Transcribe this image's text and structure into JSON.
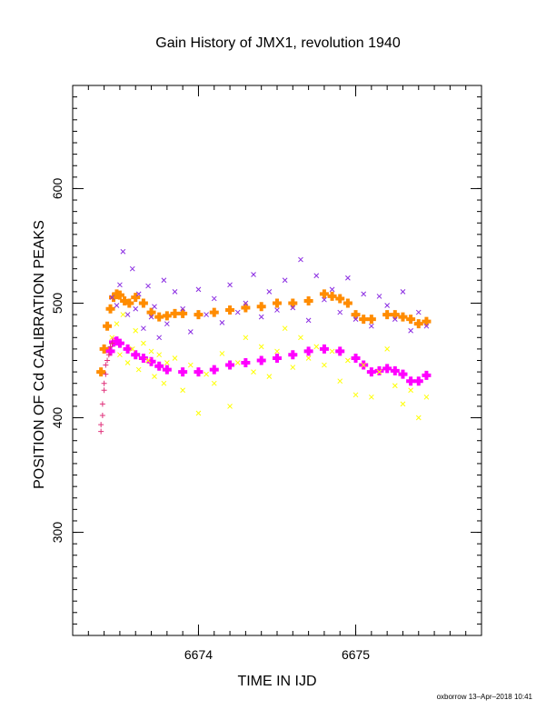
{
  "chart_data": {
    "type": "scatter",
    "title": "Gain History of JMX1, revolution 1940",
    "xlabel": "TIME IN IJD",
    "ylabel": "POSITION OF Cd CALIBRATION PEAKS",
    "xlim": [
      6673.2,
      6675.8
    ],
    "ylim": [
      210,
      690
    ],
    "x_ticks": [
      6674,
      6675
    ],
    "y_ticks": [
      300,
      400,
      500,
      600
    ],
    "grid": false,
    "footer": "oxborrow 13–Apr–2018 10:41",
    "colors": {
      "purple": "#8a2be2",
      "orange": "#ff8c00",
      "yellow": "#ffff00",
      "magenta": "#ff00ff",
      "pink": "#e0307a"
    },
    "series": [
      {
        "color": "#ff8c00",
        "marker": "plus-thick",
        "x": [
          6673.38,
          6673.4,
          6673.42,
          6673.44,
          6673.46,
          6673.48,
          6673.5,
          6673.53,
          6673.56,
          6673.6,
          6673.65,
          6673.7,
          6673.75,
          6673.8,
          6673.85,
          6673.9,
          6674.0,
          6674.1,
          6674.2,
          6674.3,
          6674.4,
          6674.5,
          6674.6,
          6674.7,
          6674.8,
          6674.85,
          6674.9,
          6674.95,
          6675.0,
          6675.05,
          6675.1,
          6675.2,
          6675.25,
          6675.3,
          6675.35,
          6675.4,
          6675.45
        ],
        "y": [
          440,
          460,
          480,
          495,
          505,
          508,
          507,
          502,
          500,
          505,
          500,
          492,
          488,
          489,
          491,
          491,
          490,
          492,
          494,
          496,
          497,
          500,
          500,
          502,
          508,
          506,
          504,
          500,
          490,
          486,
          486,
          490,
          490,
          488,
          486,
          482,
          484
        ]
      },
      {
        "color": "#ff00ff",
        "marker": "plus-thick",
        "x": [
          6673.44,
          6673.46,
          6673.48,
          6673.5,
          6673.55,
          6673.6,
          6673.65,
          6673.7,
          6673.75,
          6673.8,
          6673.9,
          6674.0,
          6674.1,
          6674.2,
          6674.3,
          6674.4,
          6674.5,
          6674.6,
          6674.7,
          6674.8,
          6674.9,
          6675.0,
          6675.05,
          6675.1,
          6675.15,
          6675.2,
          6675.25,
          6675.3,
          6675.35,
          6675.4,
          6675.45
        ],
        "y": [
          458,
          466,
          467,
          465,
          460,
          455,
          452,
          449,
          445,
          442,
          440,
          440,
          442,
          446,
          448,
          450,
          452,
          455,
          458,
          460,
          458,
          452,
          446,
          440,
          441,
          443,
          441,
          438,
          432,
          432,
          437
        ]
      },
      {
        "color": "#8a2be2",
        "marker": "x",
        "x": [
          6673.45,
          6673.48,
          6673.5,
          6673.52,
          6673.55,
          6673.58,
          6673.6,
          6673.62,
          6673.65,
          6673.68,
          6673.7,
          6673.72,
          6673.75,
          6673.78,
          6673.8,
          6673.85,
          6673.9,
          6673.95,
          6674.0,
          6674.05,
          6674.1,
          6674.15,
          6674.2,
          6674.25,
          6674.3,
          6674.35,
          6674.4,
          6674.45,
          6674.5,
          6674.55,
          6674.6,
          6674.65,
          6674.7,
          6674.75,
          6674.8,
          6674.85,
          6674.9,
          6674.95,
          6675.0,
          6675.05,
          6675.1,
          6675.15,
          6675.2,
          6675.25,
          6675.3,
          6675.35,
          6675.4,
          6675.45
        ],
        "y": [
          505,
          498,
          516,
          545,
          490,
          530,
          495,
          508,
          478,
          515,
          488,
          497,
          470,
          520,
          482,
          510,
          495,
          475,
          512,
          490,
          504,
          483,
          516,
          492,
          500,
          525,
          488,
          510,
          494,
          520,
          496,
          538,
          485,
          524,
          503,
          512,
          492,
          522,
          486,
          508,
          480,
          506,
          498,
          486,
          510,
          476,
          492,
          480
        ]
      },
      {
        "color": "#ffff00",
        "marker": "x",
        "x": [
          6673.45,
          6673.48,
          6673.5,
          6673.52,
          6673.55,
          6673.58,
          6673.6,
          6673.62,
          6673.65,
          6673.68,
          6673.7,
          6673.72,
          6673.75,
          6673.78,
          6673.8,
          6673.85,
          6673.9,
          6673.95,
          6674.0,
          6674.05,
          6674.1,
          6674.15,
          6674.2,
          6674.25,
          6674.3,
          6674.35,
          6674.4,
          6674.45,
          6674.5,
          6674.55,
          6674.6,
          6674.65,
          6674.7,
          6674.75,
          6674.8,
          6674.85,
          6674.9,
          6674.95,
          6675.0,
          6675.05,
          6675.1,
          6675.15,
          6675.2,
          6675.25,
          6675.3,
          6675.35,
          6675.4,
          6675.45
        ],
        "y": [
          470,
          482,
          455,
          490,
          448,
          460,
          476,
          442,
          465,
          450,
          458,
          436,
          455,
          430,
          448,
          452,
          424,
          446,
          404,
          438,
          430,
          456,
          410,
          448,
          470,
          440,
          462,
          436,
          458,
          478,
          444,
          470,
          452,
          462,
          446,
          458,
          432,
          450,
          420,
          446,
          418,
          440,
          460,
          428,
          412,
          424,
          400,
          418
        ]
      },
      {
        "color": "#e0307a",
        "marker": "plus",
        "x": [
          6673.38,
          6673.38,
          6673.39,
          6673.39,
          6673.4,
          6673.4,
          6673.41,
          6673.41,
          6673.42,
          6673.43,
          6673.44,
          6673.45
        ],
        "y": [
          388,
          394,
          402,
          412,
          424,
          430,
          438,
          446,
          450,
          455,
          462,
          465
        ]
      }
    ]
  }
}
